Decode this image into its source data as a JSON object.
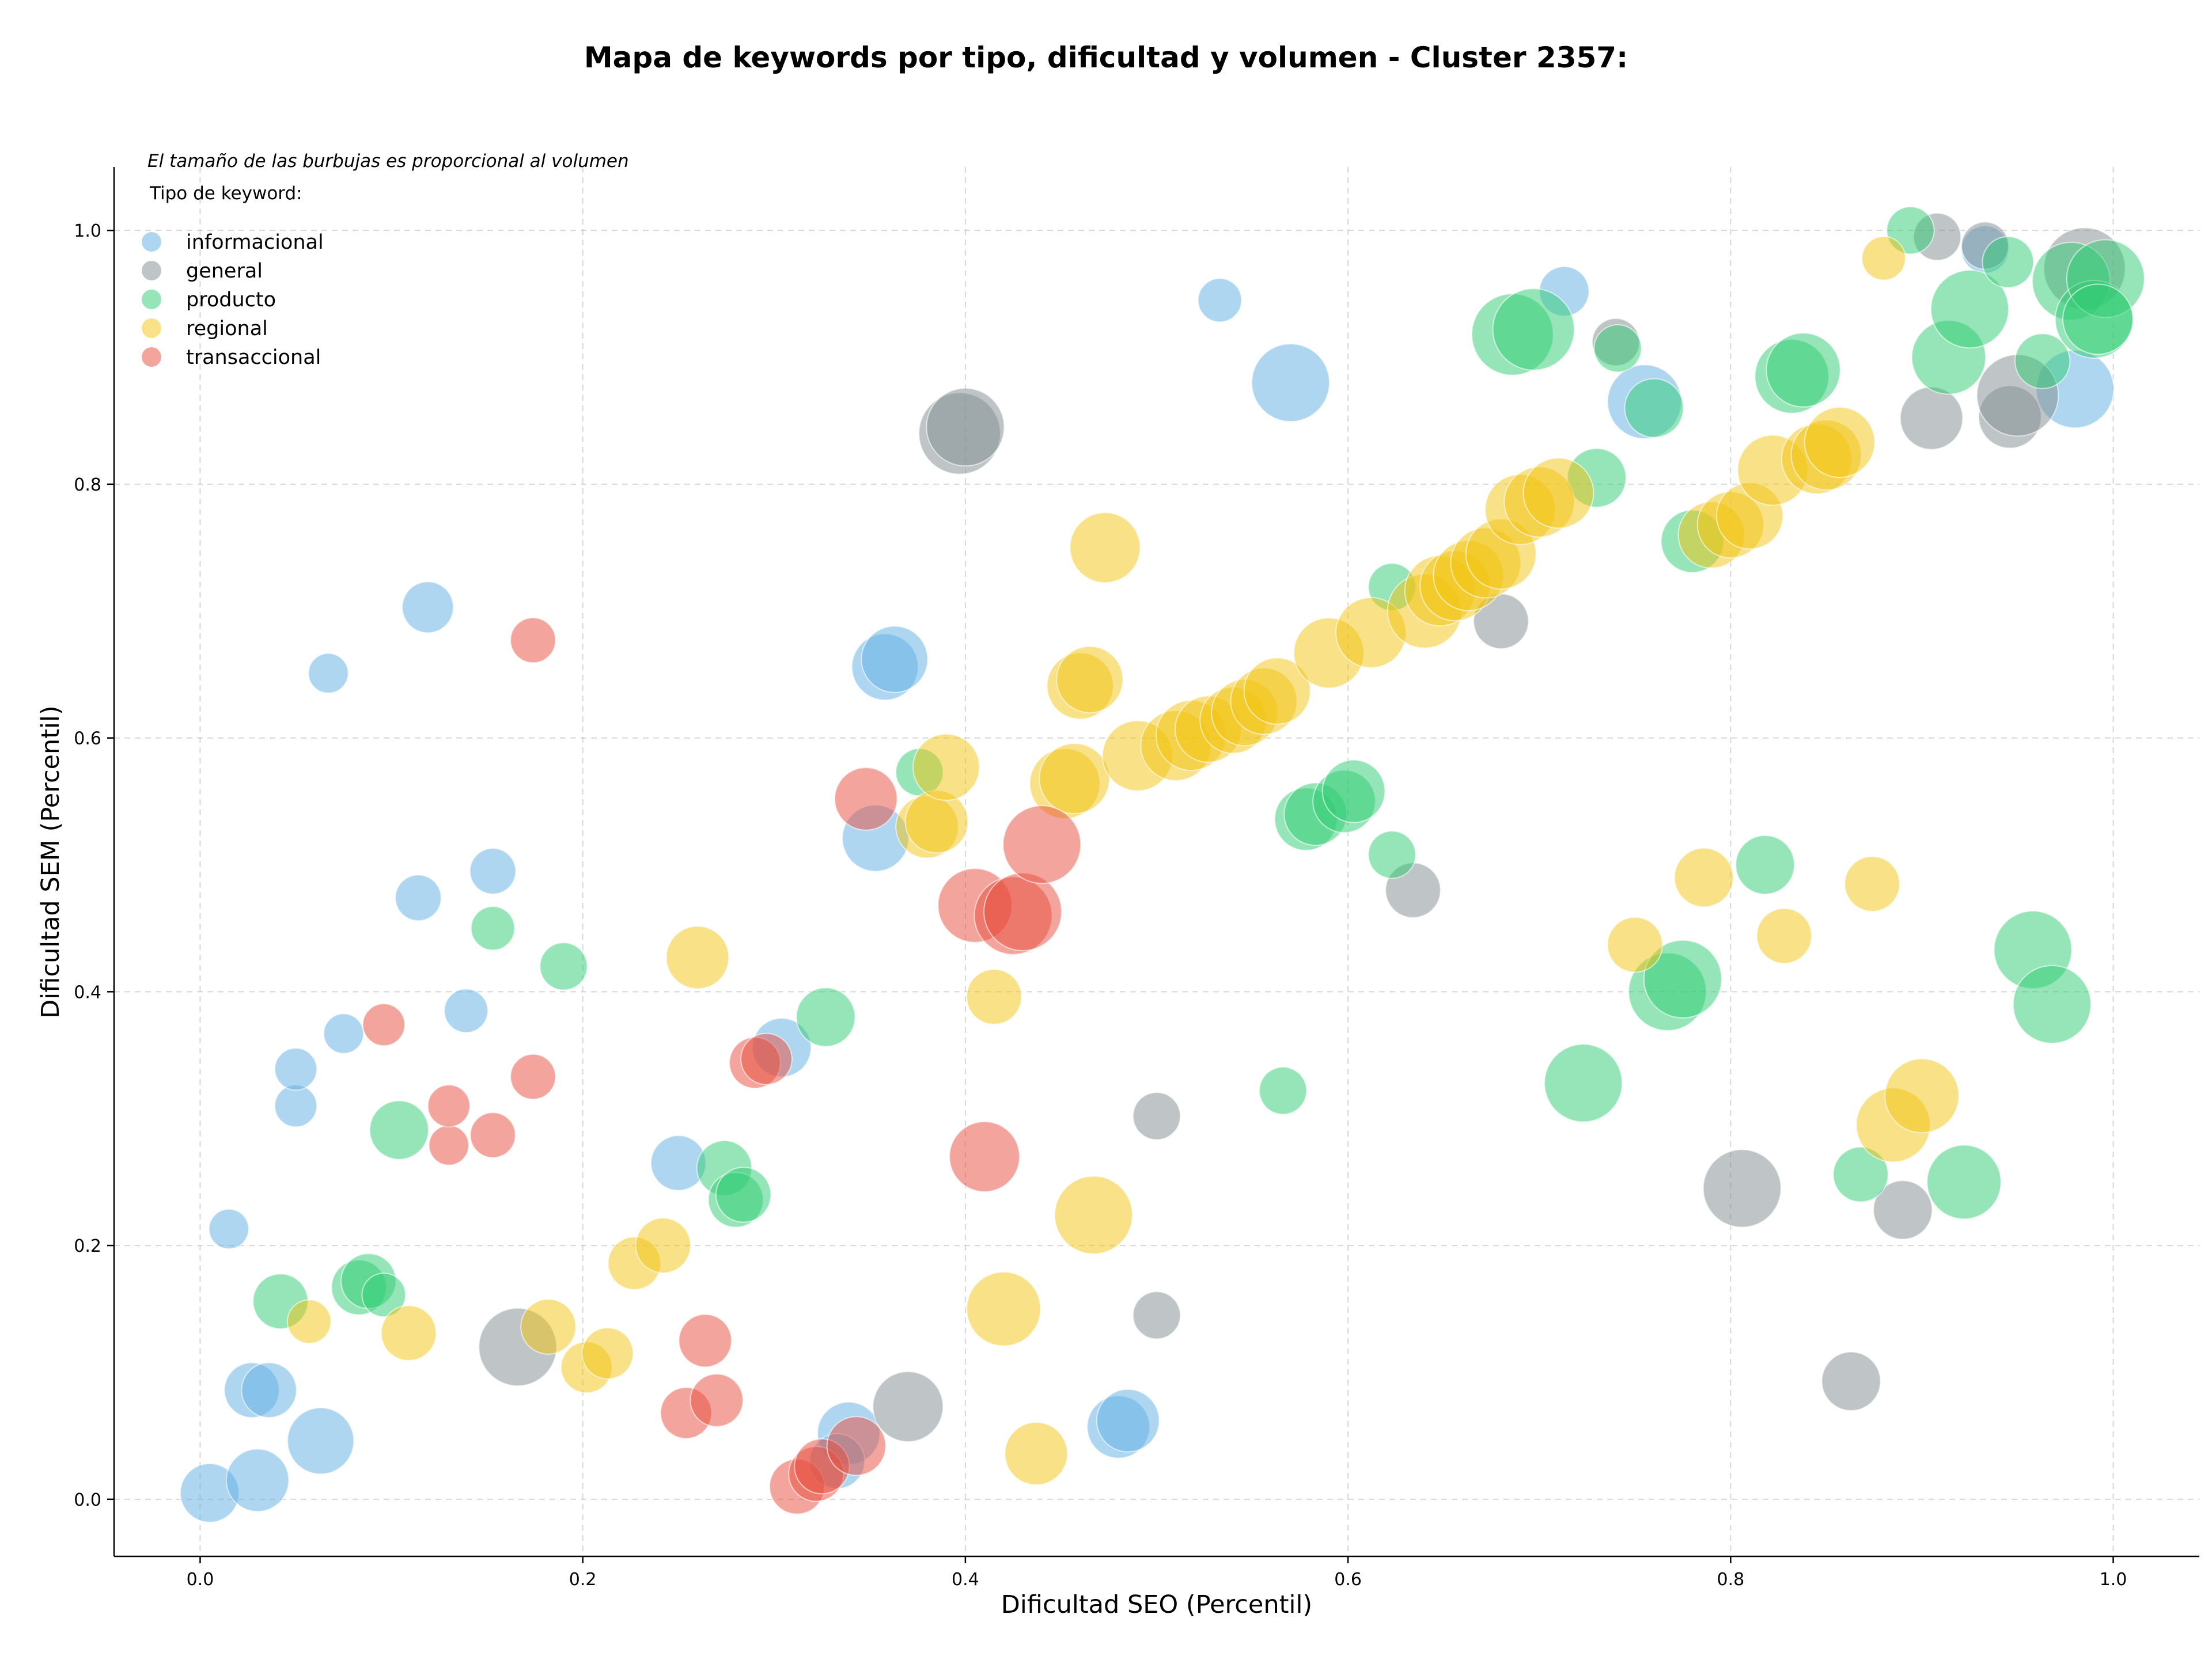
{
  "chart_data": {
    "type": "scatter",
    "title": "Mapa de keywords por tipo, dificultad y volumen - Cluster 2357:",
    "xlabel": "Dificultad SEO (Percentil)",
    "ylabel": "Dificultad SEM (Percentil)",
    "note": "El tamaño de las burbujas es proporcional al volumen",
    "legend_title": "Tipo de keyword:",
    "legend_position": "top-left",
    "grid": true,
    "xlim": [
      -0.045,
      1.045
    ],
    "ylim": [
      -0.045,
      1.05
    ],
    "xticks": [
      0.0,
      0.2,
      0.4,
      0.6,
      0.8,
      1.0
    ],
    "yticks": [
      0.0,
      0.2,
      0.4,
      0.6,
      0.8,
      1.0
    ],
    "xtick_labels": [
      "0.0",
      "0.2",
      "0.4",
      "0.6",
      "0.8",
      "1.0"
    ],
    "ytick_labels": [
      "0.0",
      "0.2",
      "0.4",
      "0.6",
      "0.8",
      "1.0"
    ],
    "series": [
      {
        "name": "informacional",
        "color": "#5dade2",
        "points": [
          [
            0.005,
            0.005,
            0.5
          ],
          [
            0.03,
            0.015,
            0.55
          ],
          [
            0.063,
            0.046,
            0.6
          ],
          [
            0.027,
            0.086,
            0.45
          ],
          [
            0.036,
            0.086,
            0.45
          ],
          [
            0.015,
            0.213,
            0.25
          ],
          [
            0.05,
            0.31,
            0.28
          ],
          [
            0.05,
            0.339,
            0.28
          ],
          [
            0.075,
            0.367,
            0.25
          ],
          [
            0.067,
            0.651,
            0.25
          ],
          [
            0.119,
            0.703,
            0.4
          ],
          [
            0.114,
            0.474,
            0.33
          ],
          [
            0.153,
            0.495,
            0.33
          ],
          [
            0.139,
            0.385,
            0.3
          ],
          [
            0.25,
            0.265,
            0.45
          ],
          [
            0.304,
            0.356,
            0.5
          ],
          [
            0.353,
            0.521,
            0.6
          ],
          [
            0.358,
            0.656,
            0.6
          ],
          [
            0.363,
            0.662,
            0.6
          ],
          [
            0.339,
            0.052,
            0.55
          ],
          [
            0.333,
            0.03,
            0.45
          ],
          [
            0.48,
            0.057,
            0.55
          ],
          [
            0.485,
            0.062,
            0.55
          ],
          [
            0.533,
            0.945,
            0.3
          ],
          [
            0.57,
            0.88,
            0.75
          ],
          [
            0.713,
            0.952,
            0.38
          ],
          [
            0.755,
            0.865,
            0.7
          ],
          [
            0.98,
            0.875,
            0.75
          ],
          [
            0.933,
            0.985,
            0.35
          ]
        ]
      },
      {
        "name": "general",
        "color": "#7f8c8d",
        "points": [
          [
            0.166,
            0.12,
            0.75
          ],
          [
            0.37,
            0.073,
            0.65
          ],
          [
            0.397,
            0.84,
            0.8
          ],
          [
            0.4,
            0.845,
            0.75
          ],
          [
            0.5,
            0.302,
            0.35
          ],
          [
            0.5,
            0.145,
            0.35
          ],
          [
            0.634,
            0.48,
            0.45
          ],
          [
            0.68,
            0.692,
            0.45
          ],
          [
            0.74,
            0.912,
            0.35
          ],
          [
            0.806,
            0.245,
            0.75
          ],
          [
            0.863,
            0.093,
            0.5
          ],
          [
            0.89,
            0.228,
            0.5
          ],
          [
            0.905,
            0.852,
            0.55
          ],
          [
            0.908,
            0.995,
            0.35
          ],
          [
            0.933,
            0.988,
            0.35
          ],
          [
            0.946,
            0.853,
            0.55
          ],
          [
            0.95,
            0.87,
            0.8
          ],
          [
            0.985,
            0.97,
            0.8
          ]
        ]
      },
      {
        "name": "producto",
        "color": "#2ecc71",
        "points": [
          [
            0.042,
            0.156,
            0.45
          ],
          [
            0.083,
            0.167,
            0.45
          ],
          [
            0.088,
            0.172,
            0.45
          ],
          [
            0.096,
            0.161,
            0.3
          ],
          [
            0.104,
            0.291,
            0.5
          ],
          [
            0.153,
            0.45,
            0.3
          ],
          [
            0.19,
            0.42,
            0.35
          ],
          [
            0.274,
            0.261,
            0.45
          ],
          [
            0.28,
            0.236,
            0.45
          ],
          [
            0.284,
            0.24,
            0.45
          ],
          [
            0.327,
            0.38,
            0.5
          ],
          [
            0.376,
            0.573,
            0.35
          ],
          [
            0.566,
            0.322,
            0.35
          ],
          [
            0.578,
            0.536,
            0.55
          ],
          [
            0.583,
            0.54,
            0.55
          ],
          [
            0.598,
            0.55,
            0.55
          ],
          [
            0.603,
            0.558,
            0.55
          ],
          [
            0.623,
            0.719,
            0.35
          ],
          [
            0.623,
            0.508,
            0.35
          ],
          [
            0.686,
            0.918,
            0.8
          ],
          [
            0.697,
            0.922,
            0.8
          ],
          [
            0.723,
            0.328,
            0.75
          ],
          [
            0.73,
            0.805,
            0.5
          ],
          [
            0.741,
            0.907,
            0.35
          ],
          [
            0.76,
            0.86,
            0.5
          ],
          [
            0.767,
            0.4,
            0.75
          ],
          [
            0.775,
            0.41,
            0.75
          ],
          [
            0.78,
            0.755,
            0.55
          ],
          [
            0.818,
            0.5,
            0.5
          ],
          [
            0.832,
            0.885,
            0.7
          ],
          [
            0.838,
            0.89,
            0.7
          ],
          [
            0.868,
            0.256,
            0.45
          ],
          [
            0.894,
            1.0,
            0.35
          ],
          [
            0.914,
            0.9,
            0.7
          ],
          [
            0.922,
            0.25,
            0.7
          ],
          [
            0.925,
            0.938,
            0.75
          ],
          [
            0.945,
            0.975,
            0.4
          ],
          [
            0.958,
            0.433,
            0.75
          ],
          [
            0.963,
            0.897,
            0.45
          ],
          [
            0.968,
            0.39,
            0.75
          ],
          [
            0.978,
            0.96,
            0.75
          ],
          [
            0.99,
            0.93,
            0.75
          ],
          [
            0.996,
            0.962,
            0.75
          ],
          [
            0.992,
            0.93,
            0.65
          ]
        ]
      },
      {
        "name": "regional",
        "color": "#f1c40f",
        "points": [
          [
            0.057,
            0.14,
            0.3
          ],
          [
            0.109,
            0.131,
            0.45
          ],
          [
            0.182,
            0.136,
            0.45
          ],
          [
            0.202,
            0.104,
            0.4
          ],
          [
            0.213,
            0.115,
            0.4
          ],
          [
            0.227,
            0.186,
            0.42
          ],
          [
            0.242,
            0.2,
            0.45
          ],
          [
            0.26,
            0.427,
            0.55
          ],
          [
            0.38,
            0.53,
            0.55
          ],
          [
            0.385,
            0.534,
            0.55
          ],
          [
            0.39,
            0.577,
            0.6
          ],
          [
            0.415,
            0.396,
            0.45
          ],
          [
            0.42,
            0.15,
            0.7
          ],
          [
            0.437,
            0.036,
            0.55
          ],
          [
            0.452,
            0.564,
            0.65
          ],
          [
            0.457,
            0.568,
            0.65
          ],
          [
            0.46,
            0.641,
            0.6
          ],
          [
            0.465,
            0.646,
            0.6
          ],
          [
            0.467,
            0.224,
            0.75
          ],
          [
            0.473,
            0.75,
            0.65
          ],
          [
            0.49,
            0.586,
            0.65
          ],
          [
            0.51,
            0.594,
            0.65
          ],
          [
            0.518,
            0.602,
            0.65
          ],
          [
            0.527,
            0.607,
            0.6
          ],
          [
            0.54,
            0.614,
            0.6
          ],
          [
            0.546,
            0.62,
            0.6
          ],
          [
            0.556,
            0.629,
            0.6
          ],
          [
            0.563,
            0.637,
            0.6
          ],
          [
            0.59,
            0.667,
            0.65
          ],
          [
            0.612,
            0.683,
            0.65
          ],
          [
            0.64,
            0.7,
            0.7
          ],
          [
            0.648,
            0.716,
            0.65
          ],
          [
            0.656,
            0.72,
            0.65
          ],
          [
            0.663,
            0.728,
            0.65
          ],
          [
            0.672,
            0.738,
            0.65
          ],
          [
            0.68,
            0.745,
            0.65
          ],
          [
            0.69,
            0.78,
            0.65
          ],
          [
            0.7,
            0.786,
            0.65
          ],
          [
            0.71,
            0.793,
            0.65
          ],
          [
            0.75,
            0.437,
            0.45
          ],
          [
            0.786,
            0.49,
            0.5
          ],
          [
            0.79,
            0.76,
            0.6
          ],
          [
            0.8,
            0.768,
            0.6
          ],
          [
            0.81,
            0.775,
            0.6
          ],
          [
            0.822,
            0.811,
            0.65
          ],
          [
            0.828,
            0.444,
            0.45
          ],
          [
            0.845,
            0.82,
            0.65
          ],
          [
            0.85,
            0.823,
            0.65
          ],
          [
            0.857,
            0.833,
            0.65
          ],
          [
            0.874,
            0.485,
            0.45
          ],
          [
            0.88,
            0.978,
            0.3
          ],
          [
            0.885,
            0.295,
            0.7
          ],
          [
            0.9,
            0.318,
            0.7
          ]
        ]
      },
      {
        "name": "transaccional",
        "color": "#e74c3c",
        "points": [
          [
            0.096,
            0.374,
            0.28
          ],
          [
            0.13,
            0.279,
            0.25
          ],
          [
            0.13,
            0.31,
            0.28
          ],
          [
            0.153,
            0.287,
            0.32
          ],
          [
            0.174,
            0.677,
            0.32
          ],
          [
            0.174,
            0.333,
            0.32
          ],
          [
            0.254,
            0.068,
            0.4
          ],
          [
            0.264,
            0.125,
            0.42
          ],
          [
            0.27,
            0.078,
            0.42
          ],
          [
            0.29,
            0.344,
            0.4
          ],
          [
            0.296,
            0.347,
            0.4
          ],
          [
            0.312,
            0.01,
            0.45
          ],
          [
            0.322,
            0.02,
            0.45
          ],
          [
            0.325,
            0.026,
            0.45
          ],
          [
            0.343,
            0.042,
            0.5
          ],
          [
            0.348,
            0.552,
            0.55
          ],
          [
            0.41,
            0.27,
            0.65
          ],
          [
            0.405,
            0.468,
            0.7
          ],
          [
            0.425,
            0.46,
            0.75
          ],
          [
            0.43,
            0.463,
            0.75
          ],
          [
            0.44,
            0.516,
            0.75
          ]
        ]
      }
    ]
  }
}
